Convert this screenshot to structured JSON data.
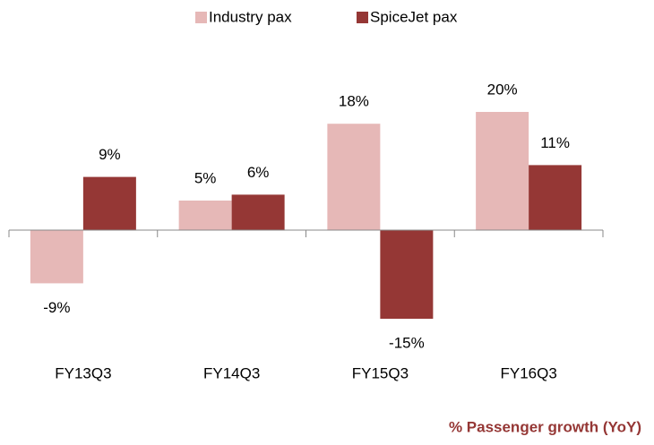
{
  "chart_data": {
    "type": "bar",
    "title": "% Passenger growth (YoY)",
    "categories": [
      "FY13Q3",
      "FY14Q3",
      "FY15Q3",
      "FY16Q3"
    ],
    "series": [
      {
        "name": "Industry pax",
        "color": "#e6b8b7",
        "values": [
          -9,
          5,
          18,
          20
        ],
        "value_labels": [
          "-9%",
          "5%",
          "18%",
          "20%"
        ]
      },
      {
        "name": "SpiceJet pax",
        "color": "#953735",
        "values": [
          9,
          6,
          -15,
          11
        ],
        "value_labels": [
          "9%",
          "6%",
          "-15%",
          "11%"
        ]
      }
    ],
    "ylim": [
      -20,
      25
    ],
    "legend": "top"
  }
}
